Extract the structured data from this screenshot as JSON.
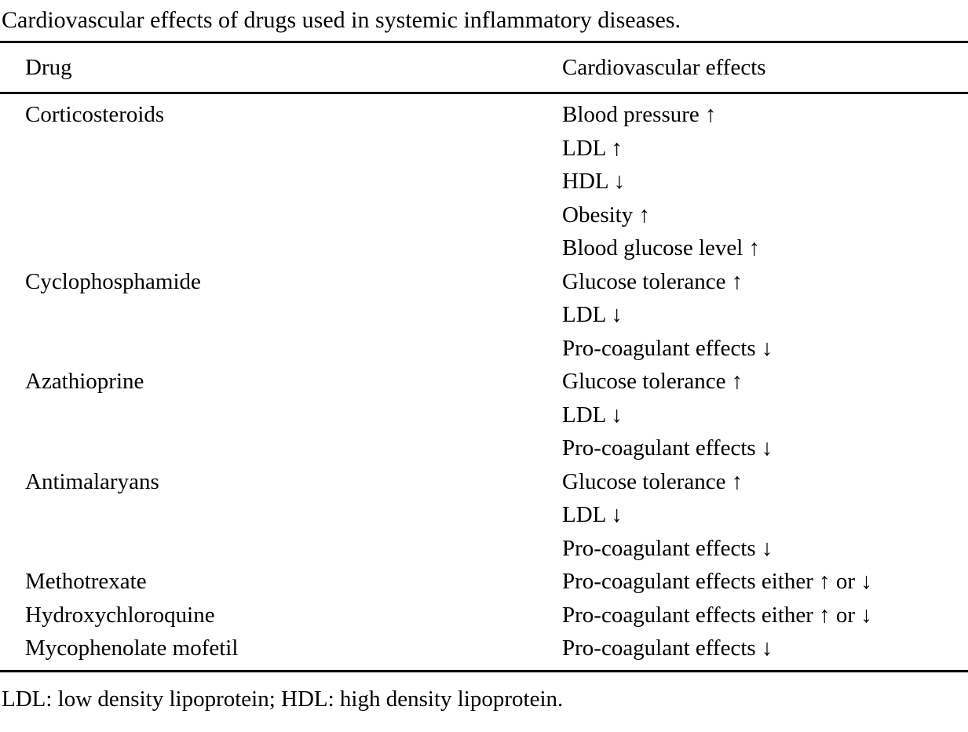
{
  "caption": "Cardiovascular effects of drugs used in systemic inflammatory diseases.",
  "table": {
    "columns": [
      "Drug",
      "Cardiovascular effects"
    ],
    "rows": [
      {
        "drug": "Corticosteroids",
        "effects": [
          "Blood pressure ↑",
          "LDL ↑",
          "HDL ↓",
          "Obesity ↑",
          "Blood glucose level ↑"
        ]
      },
      {
        "drug": "Cyclophosphamide",
        "effects": [
          "Glucose tolerance ↑",
          "LDL ↓",
          "Pro-coagulant effects ↓"
        ]
      },
      {
        "drug": "Azathioprine",
        "effects": [
          "Glucose tolerance ↑",
          "LDL ↓",
          "Pro-coagulant effects ↓"
        ]
      },
      {
        "drug": "Antimalaryans",
        "effects": [
          "Glucose tolerance ↑",
          "LDL ↓",
          "Pro-coagulant effects ↓"
        ]
      },
      {
        "drug": "Methotrexate",
        "effects": [
          "Pro-coagulant effects either ↑ or ↓"
        ]
      },
      {
        "drug": "Hydroxychloroquine",
        "effects": [
          "Pro-coagulant effects either ↑ or ↓"
        ]
      },
      {
        "drug": "Mycophenolate mofetil",
        "effects": [
          "Pro-coagulant effects ↓"
        ]
      }
    ]
  },
  "footnote": "LDL: low density lipoprotein; HDL: high density lipoprotein."
}
